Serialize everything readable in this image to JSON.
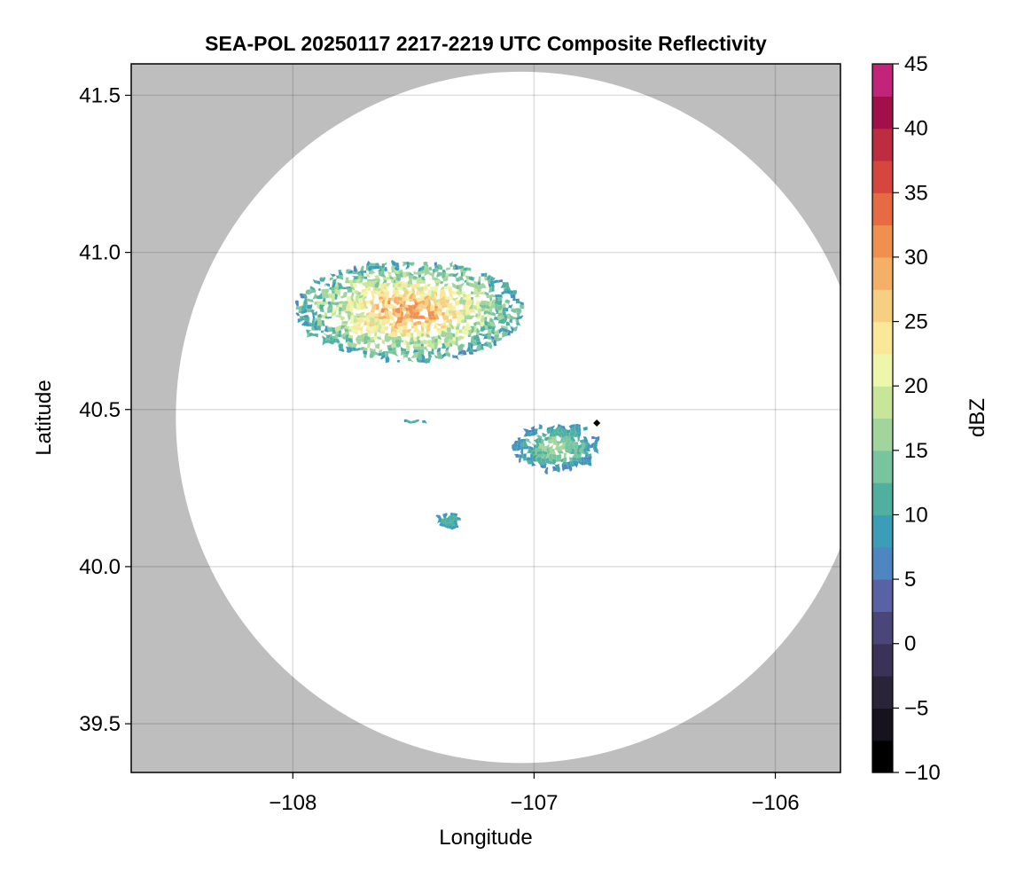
{
  "chart_data": {
    "type": "heatmap",
    "title": "SEA-POL 20250117 2217-2219 UTC Composite Reflectivity",
    "xlabel": "Longitude",
    "ylabel": "Latitude",
    "xlim": [
      -108.67,
      -105.73
    ],
    "ylim": [
      39.345,
      41.6
    ],
    "xticks": [
      -108,
      -107,
      -106
    ],
    "xtick_labels": [
      "−108",
      "−107",
      "−106"
    ],
    "yticks": [
      39.5,
      40.0,
      40.5,
      41.0,
      41.5
    ],
    "ytick_labels": [
      "39.5",
      "40.0",
      "40.5",
      "41.0",
      "41.5"
    ],
    "grid": true,
    "background_color": "#bebebe",
    "radar_domain": {
      "center_lon": -107.055,
      "center_lat": 40.475,
      "radius_deg_lon": 1.43,
      "radius_deg_lat": 1.1
    },
    "radar_marker": {
      "lon": -106.74,
      "lat": 40.457
    },
    "colorbar": {
      "label": "dBZ",
      "min": -10,
      "max": 45,
      "step": 2.5,
      "ticks": [
        -10,
        -5,
        0,
        5,
        10,
        15,
        20,
        25,
        30,
        35,
        40,
        45
      ],
      "tick_labels": [
        "−10",
        "−5",
        "0",
        "5",
        "10",
        "15",
        "20",
        "25",
        "30",
        "35",
        "40",
        "45"
      ],
      "colors": [
        "#000000",
        "#16131e",
        "#2a2438",
        "#3a3357",
        "#4a4679",
        "#5a62a6",
        "#4d86c0",
        "#3c9db9",
        "#4fb0a0",
        "#77c49e",
        "#a1d59b",
        "#c8e69a",
        "#eef6ab",
        "#fbe79a",
        "#f7cf82",
        "#f3b066",
        "#f0904f",
        "#e66a43",
        "#d6463e",
        "#be2c3f",
        "#a30f4b",
        "#c2247a",
        "#db4a9e",
        "#e777b5",
        "#e89ac7",
        "#c48cc2",
        "#a371b4",
        "#8a529f",
        "#6a2c81",
        "#3f0040"
      ]
    },
    "echoes": [
      {
        "region": "northern cluster",
        "lon_range": [
          -108.0,
          -107.05
        ],
        "lat_range": [
          40.66,
          40.98
        ],
        "dbz_range": [
          5,
          30
        ]
      },
      {
        "region": "east band",
        "lon_range": [
          -107.1,
          -106.73
        ],
        "lat_range": [
          40.31,
          40.46
        ],
        "dbz_range": [
          5,
          17
        ]
      },
      {
        "region": "small west cell",
        "lon_range": [
          -107.55,
          -107.45
        ],
        "lat_range": [
          40.46,
          40.48
        ],
        "dbz_range": [
          8,
          12
        ]
      },
      {
        "region": "southern fragments",
        "lon_range": [
          -107.42,
          -107.3
        ],
        "lat_range": [
          40.13,
          40.18
        ],
        "dbz_range": [
          7,
          12
        ]
      }
    ]
  }
}
